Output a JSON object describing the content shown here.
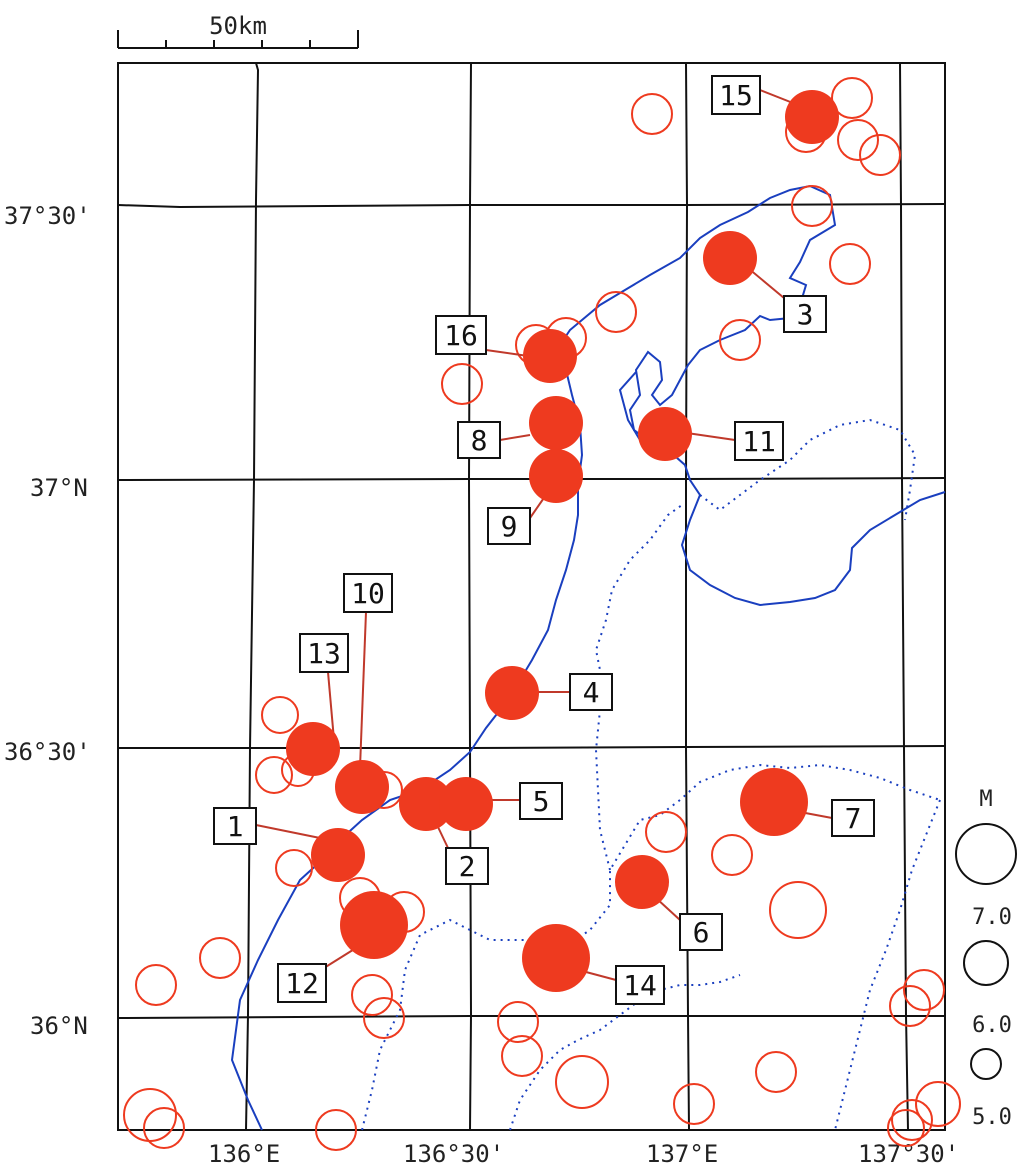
{
  "scale_bar": {
    "label": "50km"
  },
  "axes": {
    "lat_labels": [
      "37°30'",
      "37°N",
      "36°30'",
      "36°N"
    ],
    "lon_labels": [
      "136°E",
      "136°30'",
      "137°E",
      "137°30'"
    ]
  },
  "legend": {
    "title": "M",
    "values": [
      "7.0",
      "6.0",
      "5.0"
    ]
  },
  "colors": {
    "event": "#ee3a1f",
    "coast": "#1a3fbf",
    "grid": "#111111",
    "label_line": "#c0392b"
  },
  "events": [
    {
      "id": "1",
      "label": "1"
    },
    {
      "id": "2",
      "label": "2"
    },
    {
      "id": "3",
      "label": "3"
    },
    {
      "id": "4",
      "label": "4"
    },
    {
      "id": "5",
      "label": "5"
    },
    {
      "id": "6",
      "label": "6"
    },
    {
      "id": "7",
      "label": "7"
    },
    {
      "id": "8",
      "label": "8"
    },
    {
      "id": "9",
      "label": "9"
    },
    {
      "id": "10",
      "label": "10"
    },
    {
      "id": "11",
      "label": "11"
    },
    {
      "id": "12",
      "label": "12"
    },
    {
      "id": "13",
      "label": "13"
    },
    {
      "id": "14",
      "label": "14"
    },
    {
      "id": "15",
      "label": "15"
    },
    {
      "id": "16",
      "label": "16"
    }
  ]
}
